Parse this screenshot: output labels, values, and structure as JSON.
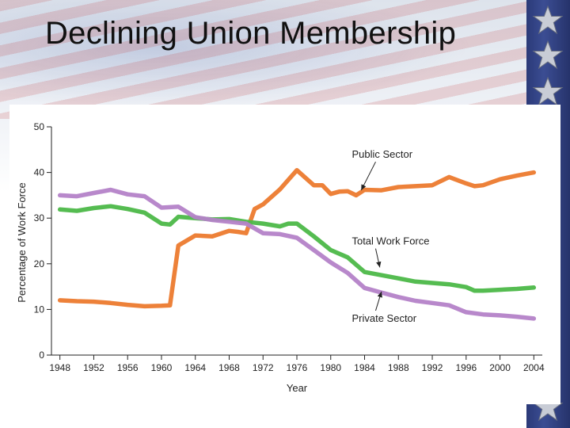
{
  "slide": {
    "title": "Declining Union Membership"
  },
  "colors": {
    "public_sector": "#ec7a2e",
    "total_work_force": "#4cb848",
    "private_sector": "#b482c8",
    "star_bar": "#2b3a78"
  },
  "decor": {
    "star_icon": "star-icon",
    "flag_image": "american-flag-banner"
  },
  "chart_data": {
    "type": "line",
    "xlabel": "Year",
    "ylabel": "Percentage of Work Force",
    "xlim": [
      1947,
      2005
    ],
    "ylim": [
      0,
      50
    ],
    "x_ticks": [
      1948,
      1952,
      1956,
      1960,
      1964,
      1968,
      1972,
      1976,
      1980,
      1984,
      1988,
      1992,
      1996,
      2000,
      2004
    ],
    "y_ticks": [
      0,
      10,
      20,
      30,
      40,
      50
    ],
    "grid": false,
    "series": [
      {
        "name": "Public Sector",
        "color_key": "public_sector",
        "x": [
          1948,
          1950,
          1952,
          1954,
          1956,
          1958,
          1960,
          1961,
          1962,
          1964,
          1966,
          1968,
          1969,
          1970,
          1971,
          1972,
          1974,
          1976,
          1978,
          1979,
          1980,
          1981,
          1982,
          1983,
          1984,
          1986,
          1988,
          1990,
          1992,
          1994,
          1996,
          1997,
          1998,
          2000,
          2002,
          2004
        ],
        "y": [
          12.0,
          11.8,
          11.7,
          11.4,
          11.0,
          10.7,
          10.8,
          10.9,
          24.0,
          26.2,
          26.0,
          27.2,
          27.0,
          26.7,
          32.0,
          33.0,
          36.3,
          40.5,
          37.2,
          37.2,
          35.3,
          35.8,
          35.9,
          35.0,
          36.2,
          36.1,
          36.8,
          37.0,
          37.2,
          39.0,
          37.6,
          37.0,
          37.2,
          38.5,
          39.3,
          40.0
        ]
      },
      {
        "name": "Total Work Force",
        "color_key": "total_work_force",
        "x": [
          1948,
          1950,
          1952,
          1954,
          1956,
          1958,
          1960,
          1961,
          1962,
          1964,
          1966,
          1968,
          1970,
          1972,
          1974,
          1975,
          1976,
          1978,
          1980,
          1982,
          1984,
          1986,
          1988,
          1990,
          1992,
          1994,
          1996,
          1997,
          1998,
          2000,
          2002,
          2004
        ],
        "y": [
          31.9,
          31.6,
          32.2,
          32.6,
          32.0,
          31.2,
          28.8,
          28.6,
          30.3,
          30.0,
          29.7,
          29.8,
          29.2,
          28.8,
          28.2,
          28.8,
          28.8,
          26.0,
          23.0,
          21.4,
          18.2,
          17.5,
          16.8,
          16.1,
          15.8,
          15.5,
          14.9,
          14.1,
          14.1,
          14.3,
          14.5,
          14.8
        ]
      },
      {
        "name": "Private Sector",
        "color_key": "private_sector",
        "x": [
          1948,
          1950,
          1952,
          1954,
          1956,
          1958,
          1960,
          1962,
          1964,
          1966,
          1968,
          1970,
          1972,
          1974,
          1976,
          1978,
          1980,
          1982,
          1984,
          1986,
          1988,
          1990,
          1992,
          1994,
          1996,
          1998,
          2000,
          2002,
          2004
        ],
        "y": [
          35.0,
          34.8,
          35.5,
          36.2,
          35.2,
          34.8,
          32.3,
          32.5,
          30.2,
          29.6,
          29.2,
          28.8,
          26.7,
          26.5,
          25.7,
          23.0,
          20.3,
          18.0,
          14.7,
          13.7,
          12.7,
          11.9,
          11.4,
          10.9,
          9.4,
          8.9,
          8.7,
          8.4,
          8.0
        ]
      }
    ],
    "annotations": [
      {
        "text": "Public Sector",
        "series_index": 0,
        "point_x": 1983.6,
        "point_y": 36.1,
        "label_x": 1982.5,
        "label_y": 43.2
      },
      {
        "text": "Total Work Force",
        "series_index": 1,
        "point_x": 1985.8,
        "point_y": 19.2,
        "label_x": 1982.5,
        "label_y": 24.2
      },
      {
        "text": "Private Sector",
        "series_index": 2,
        "point_x": 1986.0,
        "point_y": 13.9,
        "label_x": 1982.5,
        "label_y": 7.3
      }
    ]
  }
}
